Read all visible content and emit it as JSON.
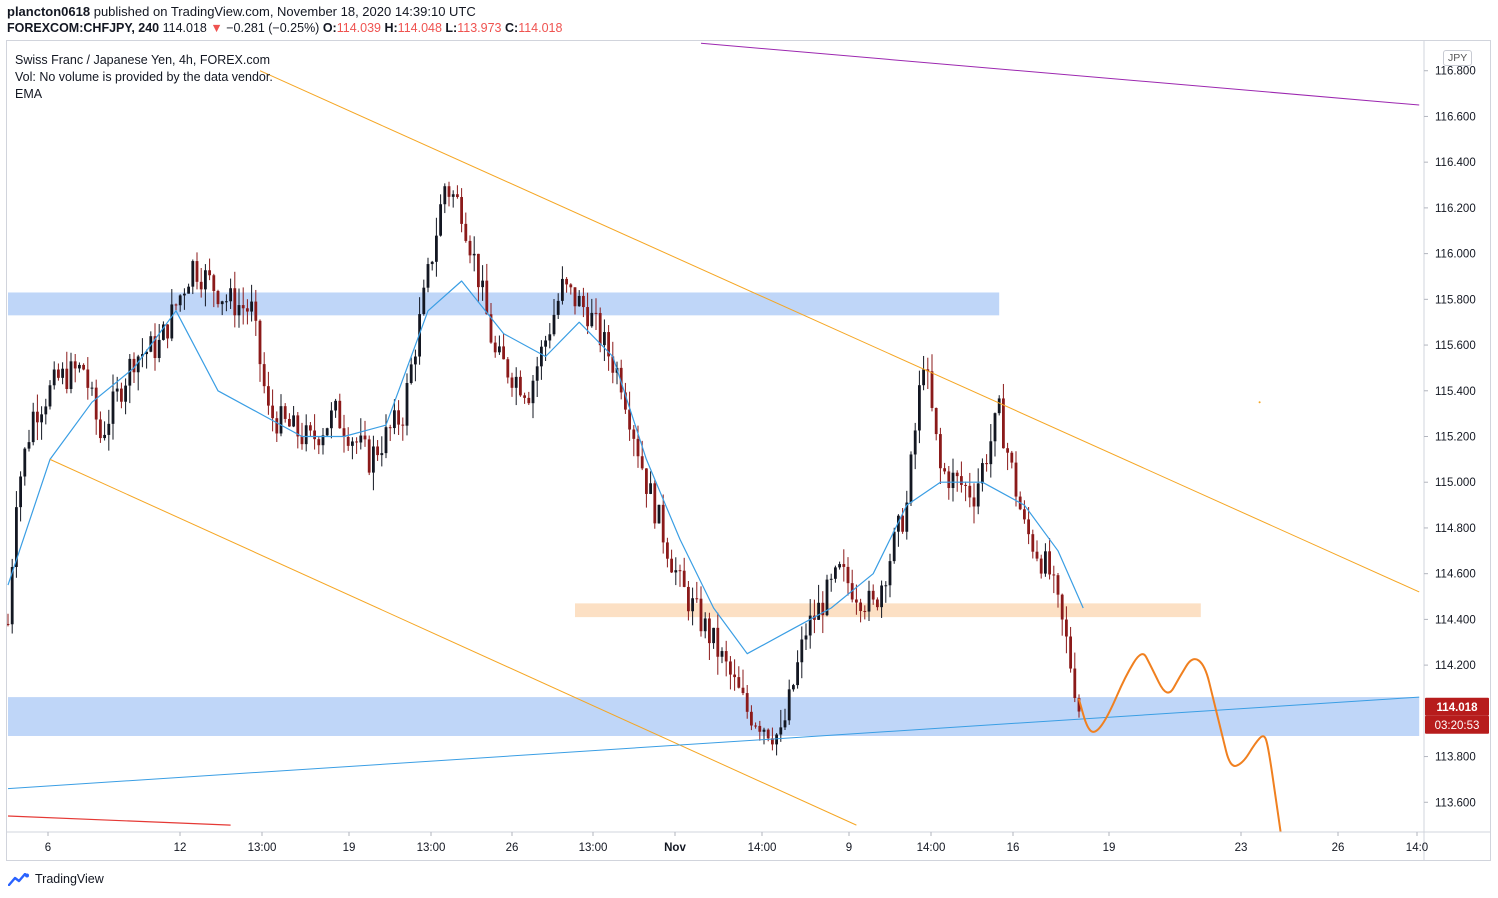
{
  "header": {
    "publisher": "plancton0618",
    "published_text": "published on TradingView.com, November 18, 2020 14:39:10 UTC",
    "symbol": "FOREXCOM:CHFJPY, 240",
    "last": "114.018",
    "arrow": "▼",
    "change": "−0.281 (−0.25%)",
    "o_label": "O:",
    "o_value": "114.039",
    "h_label": "H:",
    "h_value": "114.048",
    "l_label": "L:",
    "l_value": "113.973",
    "c_label": "C:",
    "c_value": "114.018"
  },
  "legend": {
    "title": "Swiss Franc / Japanese Yen, 4h, FOREX.com",
    "volume_note": "Vol: No volume is provided by the data vendor.",
    "indicator": "EMA"
  },
  "currency_badge": "JPY",
  "price_badge": "114.018",
  "countdown_badge": "03:20:53",
  "brand": "TradingView",
  "colors": {
    "up": "#131722",
    "down": "#8b1a1a",
    "ema": "#3a9ee4",
    "channel": "#f5a623",
    "purple": "#9c27b0",
    "red_line": "#e53935",
    "projection": "#f08020",
    "supply_zone": "#a9c8f5",
    "orange_zone": "#fbd5b0",
    "price_badge": "#b71c1c"
  },
  "chart_data": {
    "type": "candlestick",
    "timeframe": "4h",
    "symbol": "CHFJPY",
    "y_ticks": [
      116.8,
      116.6,
      116.4,
      116.2,
      116.0,
      115.8,
      115.6,
      115.4,
      115.2,
      115.0,
      114.8,
      114.6,
      114.4,
      114.2,
      113.8,
      113.6
    ],
    "y_tick_labels": [
      "116.800",
      "116.600",
      "116.400",
      "116.200",
      "116.000",
      "115.800",
      "115.600",
      "115.400",
      "115.200",
      "115.000",
      "114.800",
      "114.600",
      "114.400",
      "114.200",
      "113.800",
      "113.600"
    ],
    "ylim": [
      113.47,
      116.93
    ],
    "x_tick_labels": [
      "6",
      "12",
      "13:00",
      "19",
      "13:00",
      "26",
      "13:00",
      "Nov",
      "14:00",
      "9",
      "14:00",
      "16",
      "19",
      "23",
      "26",
      "14:0"
    ],
    "candle_count": 256,
    "price_path_keypoints": [
      {
        "i": 0,
        "price": 114.38
      },
      {
        "i": 2,
        "price": 114.95
      },
      {
        "i": 6,
        "price": 115.3
      },
      {
        "i": 12,
        "price": 115.45
      },
      {
        "i": 18,
        "price": 115.5
      },
      {
        "i": 22,
        "price": 115.2
      },
      {
        "i": 30,
        "price": 115.55
      },
      {
        "i": 36,
        "price": 115.6
      },
      {
        "i": 44,
        "price": 115.95
      },
      {
        "i": 52,
        "price": 115.8
      },
      {
        "i": 58,
        "price": 115.75
      },
      {
        "i": 62,
        "price": 115.3
      },
      {
        "i": 72,
        "price": 115.18
      },
      {
        "i": 78,
        "price": 115.3
      },
      {
        "i": 86,
        "price": 115.1
      },
      {
        "i": 94,
        "price": 115.3
      },
      {
        "i": 100,
        "price": 115.9
      },
      {
        "i": 104,
        "price": 116.3
      },
      {
        "i": 108,
        "price": 116.2
      },
      {
        "i": 112,
        "price": 115.9
      },
      {
        "i": 116,
        "price": 115.55
      },
      {
        "i": 124,
        "price": 115.4
      },
      {
        "i": 132,
        "price": 115.85
      },
      {
        "i": 138,
        "price": 115.75
      },
      {
        "i": 146,
        "price": 115.45
      },
      {
        "i": 152,
        "price": 115.0
      },
      {
        "i": 160,
        "price": 114.55
      },
      {
        "i": 168,
        "price": 114.3
      },
      {
        "i": 176,
        "price": 114.0
      },
      {
        "i": 184,
        "price": 113.88
      },
      {
        "i": 190,
        "price": 114.35
      },
      {
        "i": 198,
        "price": 114.6
      },
      {
        "i": 206,
        "price": 114.45
      },
      {
        "i": 214,
        "price": 114.9
      },
      {
        "i": 218,
        "price": 115.55
      },
      {
        "i": 222,
        "price": 115.05
      },
      {
        "i": 230,
        "price": 114.95
      },
      {
        "i": 236,
        "price": 115.3
      },
      {
        "i": 242,
        "price": 114.8
      },
      {
        "i": 248,
        "price": 114.6
      },
      {
        "i": 252,
        "price": 114.3
      },
      {
        "i": 255,
        "price": 114.018
      }
    ],
    "ema_keypoints": [
      {
        "i": 0,
        "price": 114.55
      },
      {
        "i": 10,
        "price": 115.1
      },
      {
        "i": 20,
        "price": 115.35
      },
      {
        "i": 30,
        "price": 115.5
      },
      {
        "i": 40,
        "price": 115.75
      },
      {
        "i": 50,
        "price": 115.4
      },
      {
        "i": 60,
        "price": 115.3
      },
      {
        "i": 70,
        "price": 115.2
      },
      {
        "i": 80,
        "price": 115.2
      },
      {
        "i": 90,
        "price": 115.25
      },
      {
        "i": 100,
        "price": 115.75
      },
      {
        "i": 108,
        "price": 115.88
      },
      {
        "i": 118,
        "price": 115.65
      },
      {
        "i": 128,
        "price": 115.55
      },
      {
        "i": 136,
        "price": 115.7
      },
      {
        "i": 144,
        "price": 115.55
      },
      {
        "i": 152,
        "price": 115.1
      },
      {
        "i": 160,
        "price": 114.75
      },
      {
        "i": 168,
        "price": 114.45
      },
      {
        "i": 176,
        "price": 114.25
      },
      {
        "i": 186,
        "price": 114.35
      },
      {
        "i": 196,
        "price": 114.45
      },
      {
        "i": 206,
        "price": 114.6
      },
      {
        "i": 214,
        "price": 114.9
      },
      {
        "i": 222,
        "price": 115.0
      },
      {
        "i": 232,
        "price": 115.0
      },
      {
        "i": 242,
        "price": 114.9
      },
      {
        "i": 250,
        "price": 114.7
      },
      {
        "i": 256,
        "price": 114.45
      }
    ],
    "zones": [
      {
        "name": "upper-supply-zone",
        "from_i": 0,
        "to_i": 236,
        "low": 115.73,
        "high": 115.83
      },
      {
        "name": "mid-orange-zone",
        "from_i": 135,
        "to_i": 284,
        "low": 114.41,
        "high": 114.47
      },
      {
        "name": "lower-demand-zone",
        "from_i": 0,
        "to_i": 336,
        "low": 113.89,
        "high": 114.06
      }
    ],
    "lines": [
      {
        "name": "channel-upper",
        "from": {
          "i": 60,
          "price": 116.8
        },
        "to": {
          "i": 336,
          "price": 114.52
        }
      },
      {
        "name": "channel-lower",
        "from": {
          "i": 10,
          "price": 115.1
        },
        "to": {
          "i": 202,
          "price": 113.5
        }
      },
      {
        "name": "purple-trendline",
        "from": {
          "i": 165,
          "price": 116.92
        },
        "to": {
          "i": 336,
          "price": 116.65
        }
      },
      {
        "name": "blue-trendline",
        "from": {
          "i": 0,
          "price": 113.66
        },
        "to": {
          "i": 336,
          "price": 114.06
        }
      },
      {
        "name": "red-line",
        "from": {
          "i": 0,
          "price": 113.54
        },
        "to": {
          "i": 53,
          "price": 113.5
        }
      }
    ],
    "projection_path": [
      {
        "i": 255,
        "price": 114.05
      },
      {
        "i": 257,
        "price": 113.92
      },
      {
        "i": 259,
        "price": 113.9
      },
      {
        "i": 262,
        "price": 113.98
      },
      {
        "i": 266,
        "price": 114.15
      },
      {
        "i": 270,
        "price": 114.27
      },
      {
        "i": 272,
        "price": 114.2
      },
      {
        "i": 276,
        "price": 114.05
      },
      {
        "i": 279,
        "price": 114.15
      },
      {
        "i": 282,
        "price": 114.24
      },
      {
        "i": 285,
        "price": 114.2
      },
      {
        "i": 287,
        "price": 114.05
      },
      {
        "i": 289,
        "price": 113.9
      },
      {
        "i": 291,
        "price": 113.75
      },
      {
        "i": 294,
        "price": 113.77
      },
      {
        "i": 297,
        "price": 113.86
      },
      {
        "i": 299,
        "price": 113.9
      },
      {
        "i": 300,
        "price": 113.85
      },
      {
        "i": 302,
        "price": 113.6
      },
      {
        "i": 303,
        "price": 113.47
      }
    ]
  }
}
